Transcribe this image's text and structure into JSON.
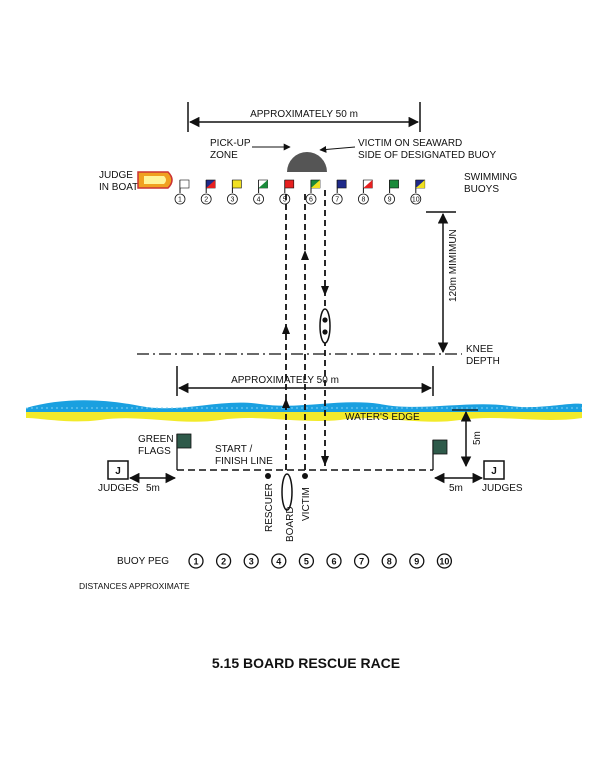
{
  "top_dimension": "APPROXIMATELY 50 m",
  "pickup_zone": [
    "PICK-UP",
    "ZONE"
  ],
  "victim_note": [
    "VICTIM ON SEAWARD",
    "SIDE OF DESIGNATED BUOY"
  ],
  "judge_in_boat": [
    "JUDGE",
    "IN BOAT"
  ],
  "swimming_buoys": [
    "SWIMMING",
    "BUOYS"
  ],
  "buoys": [
    {
      "n": "1",
      "color": "#ffffff"
    },
    {
      "n": "2",
      "color": "#1f2a8a",
      "split": "#e62020"
    },
    {
      "n": "3",
      "color": "#f0e020"
    },
    {
      "n": "4",
      "color": "#ffffff",
      "split": "#1a8a3a"
    },
    {
      "n": "5",
      "color": "#e62020"
    },
    {
      "n": "6",
      "color": "#1a8a3a",
      "split": "#f0e020"
    },
    {
      "n": "7",
      "color": "#1f2a8a"
    },
    {
      "n": "8",
      "color": "#ffffff",
      "split": "#e62020"
    },
    {
      "n": "9",
      "color": "#1a8a3a"
    },
    {
      "n": "10",
      "color": "#1f2a8a",
      "split": "#f0e020"
    }
  ],
  "min_distance": "120m MIMIMUN",
  "knee_depth": [
    "KNEE",
    "DEPTH"
  ],
  "mid_dimension": "APPROXIMATELY 50 m",
  "waters_edge": "WATER'S EDGE",
  "green_flags": [
    "GREEN",
    "FLAGS"
  ],
  "start_finish": [
    "START /",
    "FINISH LINE"
  ],
  "right_gap": "5m",
  "judge_letter": "J",
  "judges_left": "JUDGES",
  "judges_right": "JUDGES",
  "five_m_left": "5m",
  "five_m_right": "5m",
  "rescuer": "RESCUER",
  "board": "BOARD",
  "victim": "VICTIM",
  "buoy_peg": "BUOY PEG",
  "pegs": [
    "1",
    "2",
    "3",
    "4",
    "5",
    "6",
    "7",
    "8",
    "9",
    "10"
  ],
  "distances": "DISTANCES APPROXIMATE",
  "title": "5.15 BOARD RESCUE RACE",
  "colors": {
    "water": "#1aa0e0",
    "sand": "#f2ea2a",
    "flag": "#2e5a4a",
    "boat": "#f0a020",
    "buoy_zone": "#555555"
  }
}
